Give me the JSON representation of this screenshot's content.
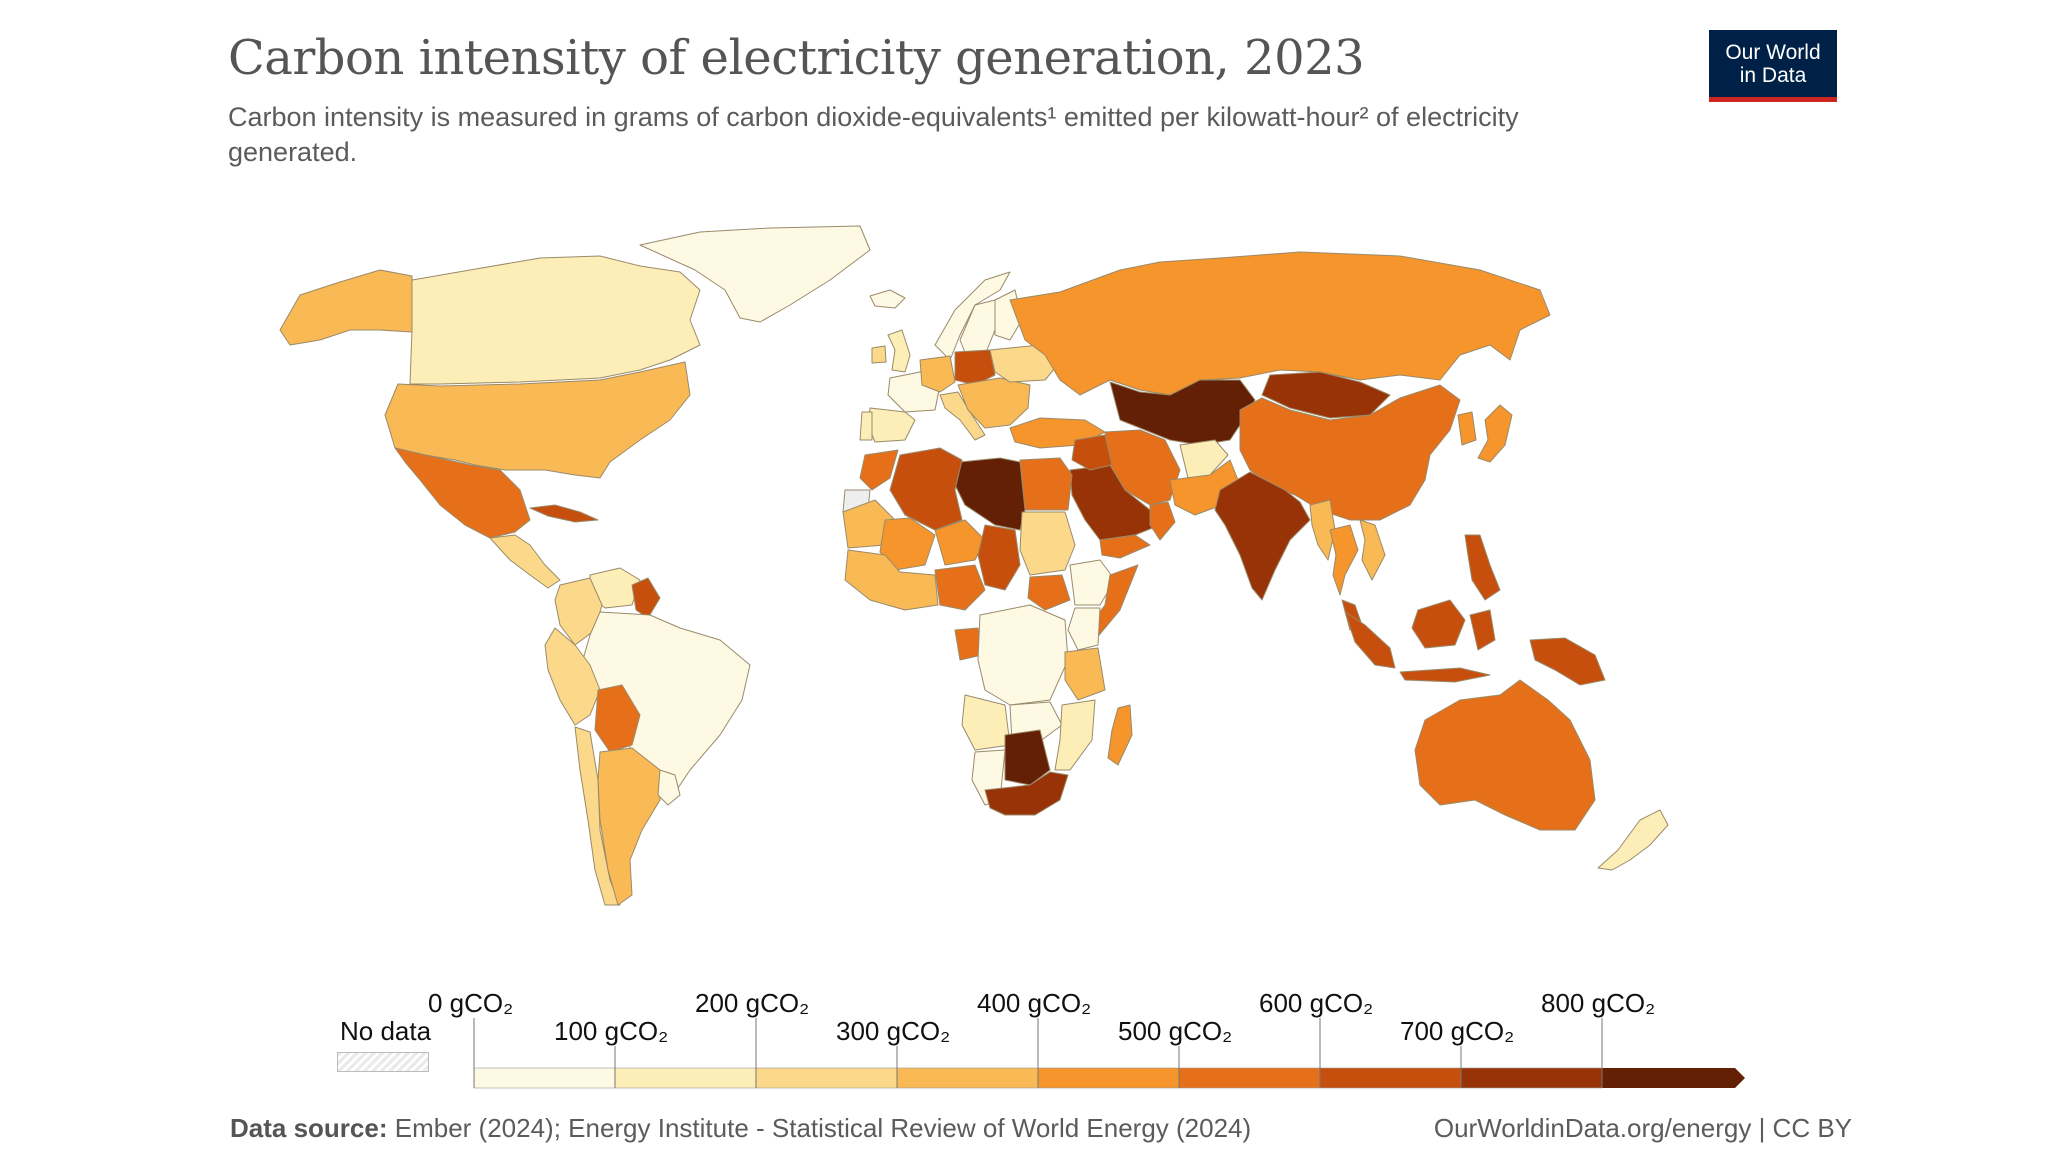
{
  "header": {
    "title": "Carbon intensity of electricity generation, 2023",
    "subtitle": "Carbon intensity is measured in grams of carbon dioxide-equivalents¹ emitted per kilowatt-hour² of electricity generated.",
    "logo_line1": "Our World",
    "logo_line2": "in Data"
  },
  "legend": {
    "no_data": "No data",
    "upper_labels": [
      "0 gCO₂",
      "200 gCO₂",
      "400 gCO₂",
      "600 gCO₂",
      "800 gCO₂"
    ],
    "lower_labels": [
      "100 gCO₂",
      "300 gCO₂",
      "500 gCO₂",
      "700 gCO₂"
    ],
    "bins": [
      {
        "range": "0-100",
        "color": "#fef9e3"
      },
      {
        "range": "100-200",
        "color": "#fdeeb8"
      },
      {
        "range": "200-300",
        "color": "#fcd98a"
      },
      {
        "range": "300-400",
        "color": "#f9b955"
      },
      {
        "range": "400-500",
        "color": "#f5952b"
      },
      {
        "range": "500-600",
        "color": "#e66f1a"
      },
      {
        "range": "600-700",
        "color": "#c64f0e"
      },
      {
        "range": "700-800",
        "color": "#983308"
      },
      {
        "range": ">800",
        "color": "#632005"
      }
    ]
  },
  "map": {
    "colors": {
      "stroke": "#9a8a6a",
      "nodata": "#eeeeee"
    },
    "regions": [
      {
        "name": "Canada",
        "bin": 1
      },
      {
        "name": "Greenland",
        "bin": 0
      },
      {
        "name": "Alaska",
        "bin": 3
      },
      {
        "name": "United States",
        "bin": 3
      },
      {
        "name": "Mexico",
        "bin": 5
      },
      {
        "name": "Cuba",
        "bin": 6
      },
      {
        "name": "Central America",
        "bin": 2
      },
      {
        "name": "Venezuela",
        "bin": 1
      },
      {
        "name": "Guyana",
        "bin": 6
      },
      {
        "name": "Colombia",
        "bin": 2
      },
      {
        "name": "Brazil",
        "bin": 0
      },
      {
        "name": "Peru",
        "bin": 2
      },
      {
        "name": "Bolivia",
        "bin": 5
      },
      {
        "name": "Chile",
        "bin": 2
      },
      {
        "name": "Argentina",
        "bin": 3
      },
      {
        "name": "Uruguay",
        "bin": 0
      },
      {
        "name": "Iceland",
        "bin": 0
      },
      {
        "name": "Norway",
        "bin": 0
      },
      {
        "name": "Sweden",
        "bin": 0
      },
      {
        "name": "Finland",
        "bin": 0
      },
      {
        "name": "United Kingdom",
        "bin": 1
      },
      {
        "name": "Ireland",
        "bin": 2
      },
      {
        "name": "France",
        "bin": 0
      },
      {
        "name": "Spain",
        "bin": 1
      },
      {
        "name": "Portugal",
        "bin": 1
      },
      {
        "name": "Germany",
        "bin": 3
      },
      {
        "name": "Poland",
        "bin": 6
      },
      {
        "name": "Italy",
        "bin": 2
      },
      {
        "name": "Balkans",
        "bin": 3
      },
      {
        "name": "Ukraine",
        "bin": 2
      },
      {
        "name": "Turkey",
        "bin": 4
      },
      {
        "name": "Russia",
        "bin": 4
      },
      {
        "name": "Kazakhstan",
        "bin": 8
      },
      {
        "name": "Mongolia",
        "bin": 7
      },
      {
        "name": "China",
        "bin": 5
      },
      {
        "name": "Korea",
        "bin": 4
      },
      {
        "name": "Japan",
        "bin": 4
      },
      {
        "name": "Iran",
        "bin": 5
      },
      {
        "name": "Afghanistan",
        "bin": 1
      },
      {
        "name": "Pakistan",
        "bin": 4
      },
      {
        "name": "India",
        "bin": 7
      },
      {
        "name": "Myanmar",
        "bin": 3
      },
      {
        "name": "Thailand",
        "bin": 4
      },
      {
        "name": "Vietnam",
        "bin": 3
      },
      {
        "name": "Malaysia",
        "bin": 6
      },
      {
        "name": "Indonesia",
        "bin": 6
      },
      {
        "name": "Papua New Guinea",
        "bin": 6
      },
      {
        "name": "Philippines",
        "bin": 6
      },
      {
        "name": "Australia",
        "bin": 5
      },
      {
        "name": "New Zealand",
        "bin": 1
      },
      {
        "name": "Saudi Arabia",
        "bin": 7
      },
      {
        "name": "Iraq",
        "bin": 6
      },
      {
        "name": "Yemen",
        "bin": 5
      },
      {
        "name": "Oman",
        "bin": 5
      },
      {
        "name": "Egypt",
        "bin": 5
      },
      {
        "name": "Libya",
        "bin": 8
      },
      {
        "name": "Algeria",
        "bin": 6
      },
      {
        "name": "Morocco",
        "bin": 5
      },
      {
        "name": "Mauritania",
        "bin": 3
      },
      {
        "name": "Mali",
        "bin": 4
      },
      {
        "name": "Niger",
        "bin": 4
      },
      {
        "name": "Chad",
        "bin": 6
      },
      {
        "name": "Sudan",
        "bin": 2
      },
      {
        "name": "South Sudan",
        "bin": 5
      },
      {
        "name": "Ethiopia",
        "bin": 0
      },
      {
        "name": "Somalia",
        "bin": 5
      },
      {
        "name": "Kenya",
        "bin": 0
      },
      {
        "name": "Nigeria",
        "bin": 5
      },
      {
        "name": "West Africa coast",
        "bin": 3
      },
      {
        "name": "Gabon",
        "bin": 5
      },
      {
        "name": "DR Congo",
        "bin": 0
      },
      {
        "name": "Tanzania",
        "bin": 3
      },
      {
        "name": "Angola",
        "bin": 1
      },
      {
        "name": "Zambia",
        "bin": 0
      },
      {
        "name": "Mozambique",
        "bin": 1
      },
      {
        "name": "Namibia",
        "bin": 0
      },
      {
        "name": "Botswana",
        "bin": 8
      },
      {
        "name": "South Africa",
        "bin": 7
      },
      {
        "name": "Madagascar",
        "bin": 4
      },
      {
        "name": "Western Sahara",
        "bin": -1
      }
    ]
  },
  "footer": {
    "source_label": "Data source:",
    "source_text": "Ember (2024); Energy Institute - Statistical Review of World Energy (2024)",
    "url": "OurWorldinData.org/energy",
    "license": "| CC BY"
  }
}
